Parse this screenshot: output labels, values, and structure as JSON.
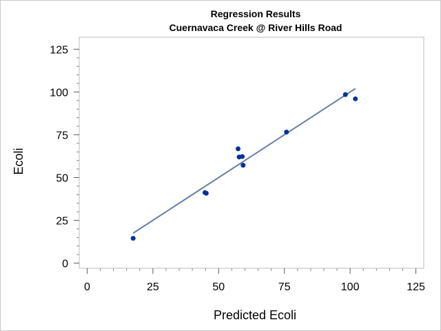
{
  "chart_data": {
    "type": "scatter",
    "title": "Regression Results",
    "subtitle": "Cuernavaca Creek @ River Hills Road",
    "xlabel": "Predicted Ecoli",
    "ylabel": "Ecoli",
    "xlim": [
      -3,
      128
    ],
    "ylim": [
      -3,
      132
    ],
    "xticks": [
      0,
      25,
      50,
      75,
      100,
      125
    ],
    "yticks": [
      0,
      25,
      50,
      75,
      100,
      125
    ],
    "xtick_labels": [
      "0",
      "25",
      "50",
      "75",
      "100",
      "125"
    ],
    "ytick_labels": [
      "0",
      "25",
      "50",
      "75",
      "100",
      "125"
    ],
    "grid": false,
    "legend": "none",
    "series": [
      {
        "type": "scatter",
        "color": "#003399",
        "points": [
          {
            "x": 17.5,
            "y": 14.5
          },
          {
            "x": 44.8,
            "y": 41.2
          },
          {
            "x": 45.3,
            "y": 40.8
          },
          {
            "x": 57.4,
            "y": 66.8
          },
          {
            "x": 57.8,
            "y": 62.0
          },
          {
            "x": 59.0,
            "y": 62.3
          },
          {
            "x": 59.3,
            "y": 57.2
          },
          {
            "x": 75.8,
            "y": 76.6
          },
          {
            "x": 98.2,
            "y": 98.5
          },
          {
            "x": 102.0,
            "y": 96.0
          }
        ]
      },
      {
        "type": "line",
        "color": "#667fa2",
        "points": [
          {
            "x": 17.5,
            "y": 17.5
          },
          {
            "x": 102.0,
            "y": 102.0
          }
        ]
      }
    ]
  }
}
